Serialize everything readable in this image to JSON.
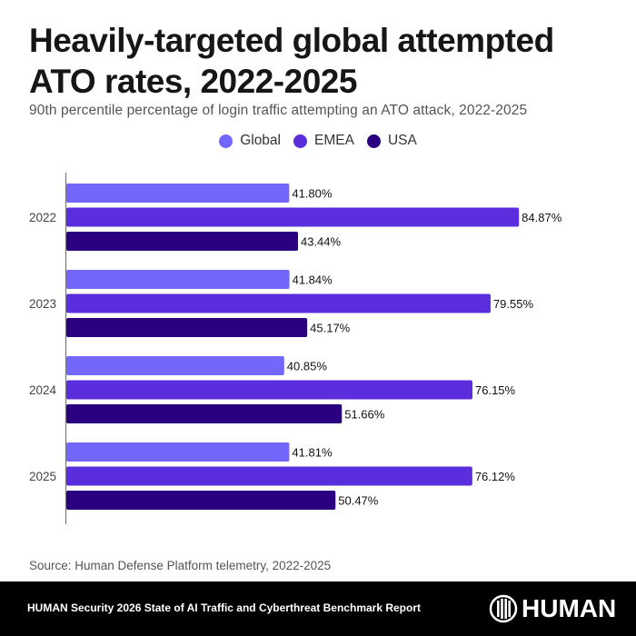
{
  "header": {
    "title": "Heavily-targeted global attempted ATO rates, 2022-2025",
    "subtitle": "90th percentile percentage of login traffic attempting an ATO attack, 2022-2025"
  },
  "chart_data": {
    "type": "bar",
    "orientation": "horizontal",
    "title": "Heavily-targeted global attempted ATO rates, 2022-2025",
    "subtitle": "90th percentile percentage of login traffic attempting an ATO attack, 2022-2025",
    "xlabel": "",
    "ylabel": "",
    "xlim": [
      0,
      100
    ],
    "grid": false,
    "legend_position": "top-center",
    "categories": [
      "2022",
      "2023",
      "2024",
      "2025"
    ],
    "series": [
      {
        "name": "Global",
        "color": "#7367fb",
        "values": [
          41.8,
          41.84,
          40.85,
          41.81
        ],
        "labels": [
          "41.80%",
          "41.84%",
          "40.85%",
          "41.81%"
        ]
      },
      {
        "name": "EMEA",
        "color": "#5a2ddd",
        "values": [
          84.87,
          79.55,
          76.15,
          76.12
        ],
        "labels": [
          "84.87%",
          "79.55%",
          "76.15%",
          "76.12%"
        ]
      },
      {
        "name": "USA",
        "color": "#2a0080",
        "values": [
          43.44,
          45.17,
          51.66,
          50.47
        ],
        "labels": [
          "43.44%",
          "45.17%",
          "51.66%",
          "50.47%"
        ]
      }
    ]
  },
  "source": "Source: Human Defense Platform telemetry, 2022-2025",
  "footer": {
    "report": "HUMAN Security 2026 State of AI Traffic and Cyberthreat Benchmark Report",
    "logo_text": "HUMAN",
    "logo_icon": "human-logo-icon"
  }
}
